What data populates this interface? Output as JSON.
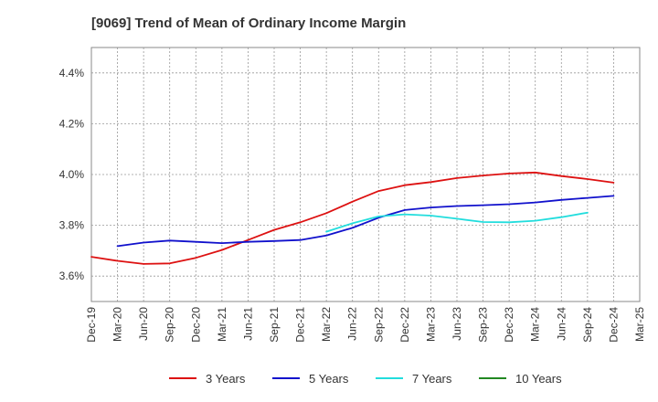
{
  "chart_data": {
    "type": "line",
    "title": "[9069]  Trend of Mean of Ordinary Income Margin",
    "xlabel": "",
    "ylabel": "",
    "ylim": [
      3.5,
      4.5
    ],
    "y_ticks": [
      3.6,
      3.8,
      4.0,
      4.2,
      4.4
    ],
    "y_tick_labels": [
      "3.6%",
      "3.8%",
      "4.0%",
      "4.2%",
      "4.4%"
    ],
    "x_tick_labels": [
      "Dec-19",
      "Mar-20",
      "Jun-20",
      "Sep-20",
      "Dec-20",
      "Mar-21",
      "Jun-21",
      "Sep-21",
      "Dec-21",
      "Mar-22",
      "Jun-22",
      "Sep-22",
      "Dec-22",
      "Mar-23",
      "Jun-23",
      "Sep-23",
      "Dec-23",
      "Mar-24",
      "Jun-24",
      "Sep-24",
      "Dec-24",
      "Mar-25"
    ],
    "grid": true,
    "legend_position": "bottom",
    "series": [
      {
        "name": "3 Years",
        "color": "#dd1111",
        "start_index": 0,
        "values": [
          3.676,
          3.66,
          3.648,
          3.65,
          3.672,
          3.703,
          3.742,
          3.782,
          3.812,
          3.848,
          3.893,
          3.935,
          3.958,
          3.97,
          3.986,
          3.996,
          4.004,
          4.008,
          3.994,
          3.982,
          3.968
        ]
      },
      {
        "name": "5 Years",
        "color": "#1111cc",
        "start_index": 1,
        "values": [
          3.718,
          3.732,
          3.74,
          3.735,
          3.73,
          3.735,
          3.738,
          3.742,
          3.76,
          3.79,
          3.83,
          3.86,
          3.87,
          3.876,
          3.879,
          3.883,
          3.89,
          3.9,
          3.908,
          3.916
        ]
      },
      {
        "name": "7 Years",
        "color": "#22dddd",
        "start_index": 9,
        "values": [
          3.775,
          3.808,
          3.835,
          3.843,
          3.838,
          3.826,
          3.813,
          3.812,
          3.818,
          3.832,
          3.85
        ]
      },
      {
        "name": "10 Years",
        "color": "#228822",
        "start_index": 0,
        "values": []
      }
    ]
  }
}
